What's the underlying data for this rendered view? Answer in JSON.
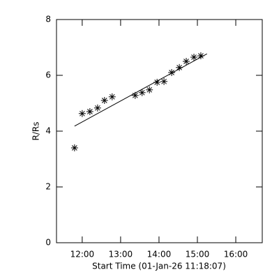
{
  "chart_data": {
    "type": "scatter",
    "x_label": "Start Time (01-Jan-26 11:18:07)",
    "y_label": "R/Rs",
    "xlim": [
      11.33,
      16.69
    ],
    "ylim": [
      0,
      8
    ],
    "xticks": [
      {
        "value": 12,
        "label": "12:00"
      },
      {
        "value": 13,
        "label": "13:00"
      },
      {
        "value": 14,
        "label": "14:00"
      },
      {
        "value": 15,
        "label": "15:00"
      },
      {
        "value": 16,
        "label": "16:00"
      }
    ],
    "yticks": [
      0,
      2,
      4,
      6,
      8
    ],
    "color": "#000000",
    "points": {
      "x": [
        11.8,
        12.0,
        12.2,
        12.4,
        12.58,
        12.78,
        13.38,
        13.56,
        13.75,
        13.95,
        14.13,
        14.33,
        14.53,
        14.71,
        14.91,
        15.09
      ],
      "values": [
        3.4,
        4.63,
        4.7,
        4.83,
        5.1,
        5.23,
        5.28,
        5.38,
        5.48,
        5.75,
        5.78,
        6.1,
        6.28,
        6.5,
        6.65,
        6.7
      ]
    },
    "fit": {
      "x": [
        11.8,
        15.25
      ],
      "values": [
        4.18,
        6.77
      ]
    }
  }
}
